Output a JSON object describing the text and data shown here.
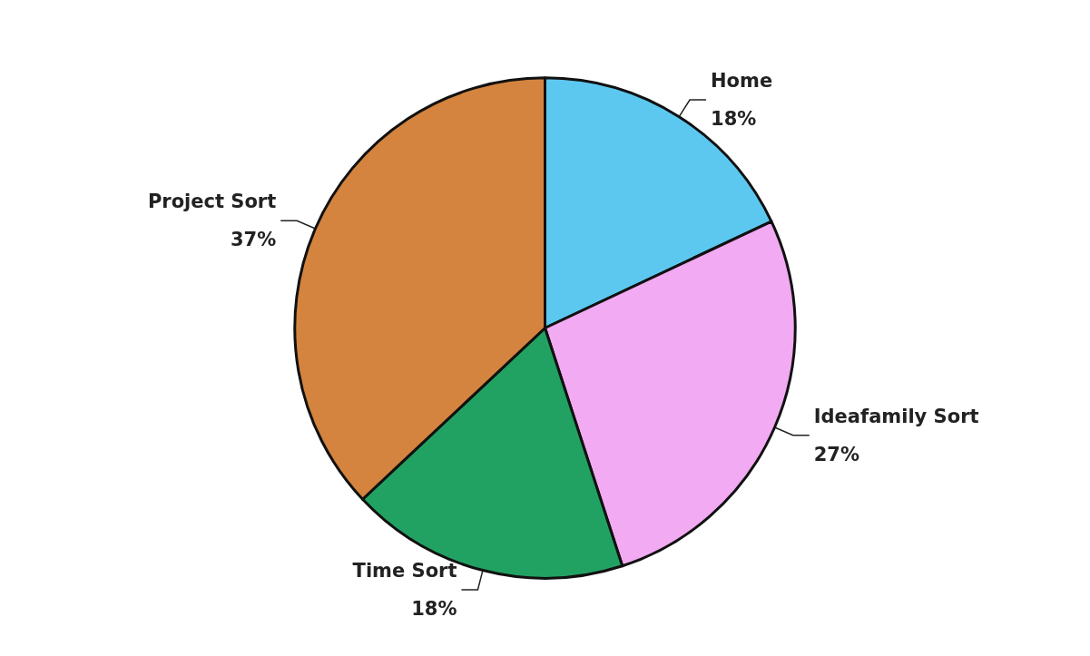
{
  "chart_data": {
    "type": "pie",
    "categories": [
      "Home",
      "Ideafamily Sort",
      "Time Sort",
      "Project Sort"
    ],
    "values": [
      18,
      27,
      18,
      37
    ],
    "value_labels": [
      "18%",
      "27%",
      "18%",
      "37%"
    ],
    "colors": [
      "#5cc8f0",
      "#f2aaf2",
      "#22a262",
      "#d4843e"
    ],
    "legend": false
  }
}
